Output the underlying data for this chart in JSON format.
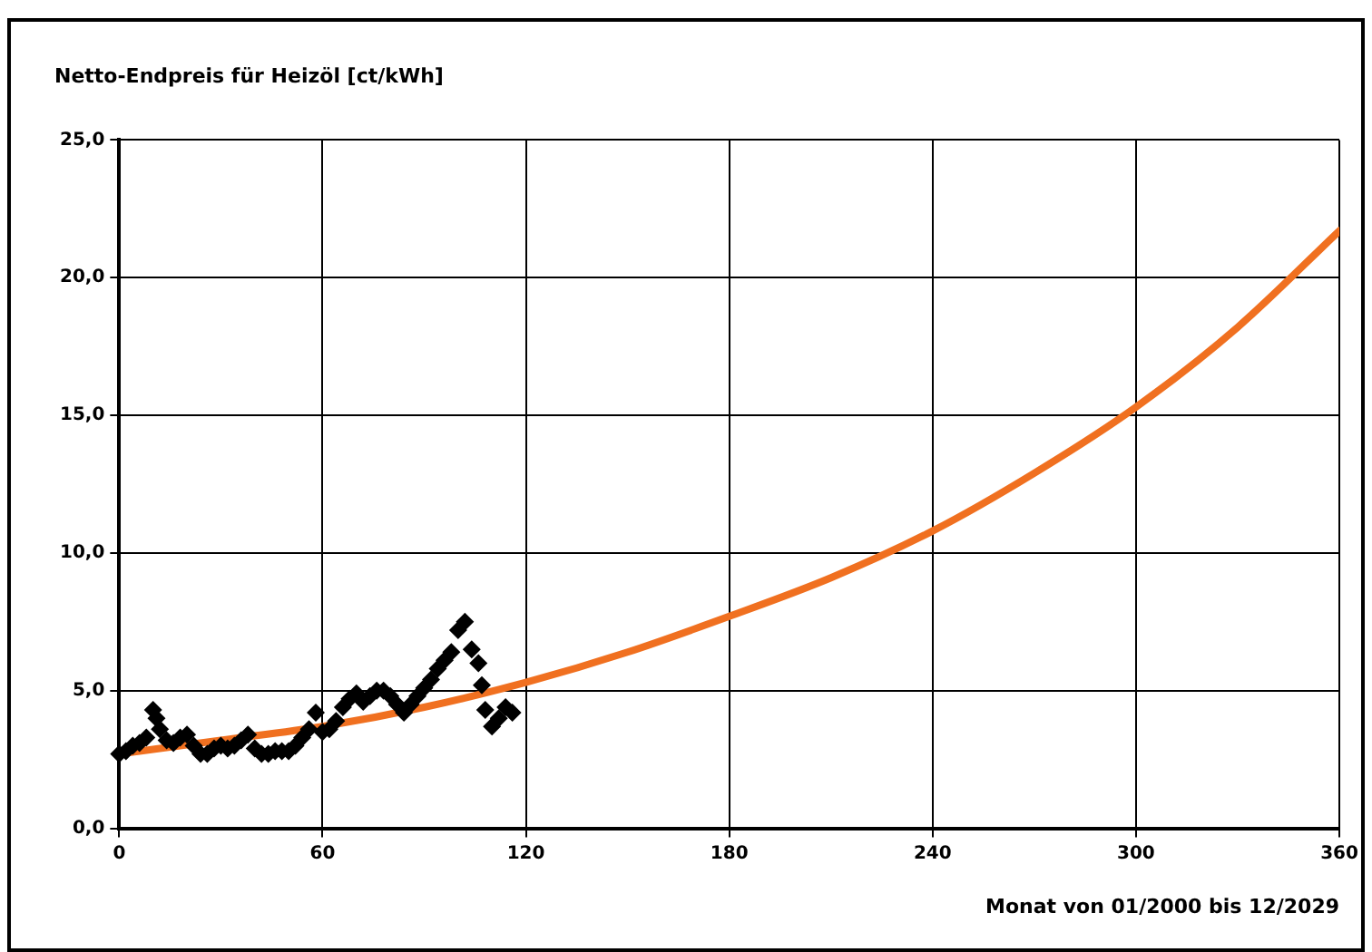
{
  "chart_data": {
    "type": "scatter",
    "title": "Netto-Endpreis für Heizöl [ct/kWh]",
    "xlabel": "Monat von 01/2000 bis 12/2029",
    "xlim": [
      0,
      360
    ],
    "xticks": [
      0,
      60,
      120,
      180,
      240,
      300,
      360
    ],
    "ylim": [
      0,
      25
    ],
    "yticks": [
      {
        "value": 0,
        "label": "0,0"
      },
      {
        "value": 5,
        "label": "5,0"
      },
      {
        "value": 10,
        "label": "10,0"
      },
      {
        "value": 15,
        "label": "15,0"
      },
      {
        "value": 20,
        "label": "20,0"
      },
      {
        "value": 25,
        "label": "25,0"
      }
    ],
    "grid": true,
    "legend": false,
    "marker": "diamond",
    "series": [
      {
        "type": "line",
        "color": "#f07020",
        "marker": "none",
        "x": [
          0,
          30,
          60,
          90,
          120,
          150,
          180,
          210,
          240,
          270,
          300,
          330,
          360
        ],
        "values": [
          2.7,
          3.2,
          3.7,
          4.4,
          5.3,
          6.4,
          7.7,
          9.1,
          10.8,
          12.9,
          15.3,
          18.2,
          21.7
        ]
      },
      {
        "color": "#000000",
        "x": [
          0,
          2,
          4,
          6,
          8,
          10,
          11,
          12,
          14,
          16,
          18,
          20,
          22,
          24,
          26,
          28,
          30,
          32,
          34,
          36,
          38,
          40,
          42,
          44,
          46,
          48,
          50,
          52,
          54,
          56,
          58,
          60,
          62,
          64,
          66,
          68,
          70,
          72,
          74,
          76,
          78,
          80,
          82,
          84,
          86,
          88,
          90,
          92,
          94,
          96,
          98,
          100,
          102,
          104,
          106,
          107,
          108,
          110,
          112,
          114,
          116
        ],
        "values": [
          2.7,
          2.8,
          3.0,
          3.1,
          3.3,
          4.3,
          4.0,
          3.6,
          3.2,
          3.1,
          3.3,
          3.4,
          3.0,
          2.7,
          2.7,
          2.9,
          3.0,
          2.9,
          3.0,
          3.2,
          3.4,
          2.9,
          2.7,
          2.7,
          2.8,
          2.8,
          2.8,
          3.0,
          3.3,
          3.6,
          4.2,
          3.5,
          3.6,
          3.9,
          4.4,
          4.7,
          4.9,
          4.6,
          4.8,
          5.0,
          5.0,
          4.8,
          4.5,
          4.2,
          4.5,
          4.8,
          5.1,
          5.4,
          5.8,
          6.1,
          6.4,
          7.2,
          7.5,
          6.5,
          6.0,
          5.2,
          4.3,
          3.7,
          4.0,
          4.4,
          4.2
        ]
      }
    ]
  }
}
